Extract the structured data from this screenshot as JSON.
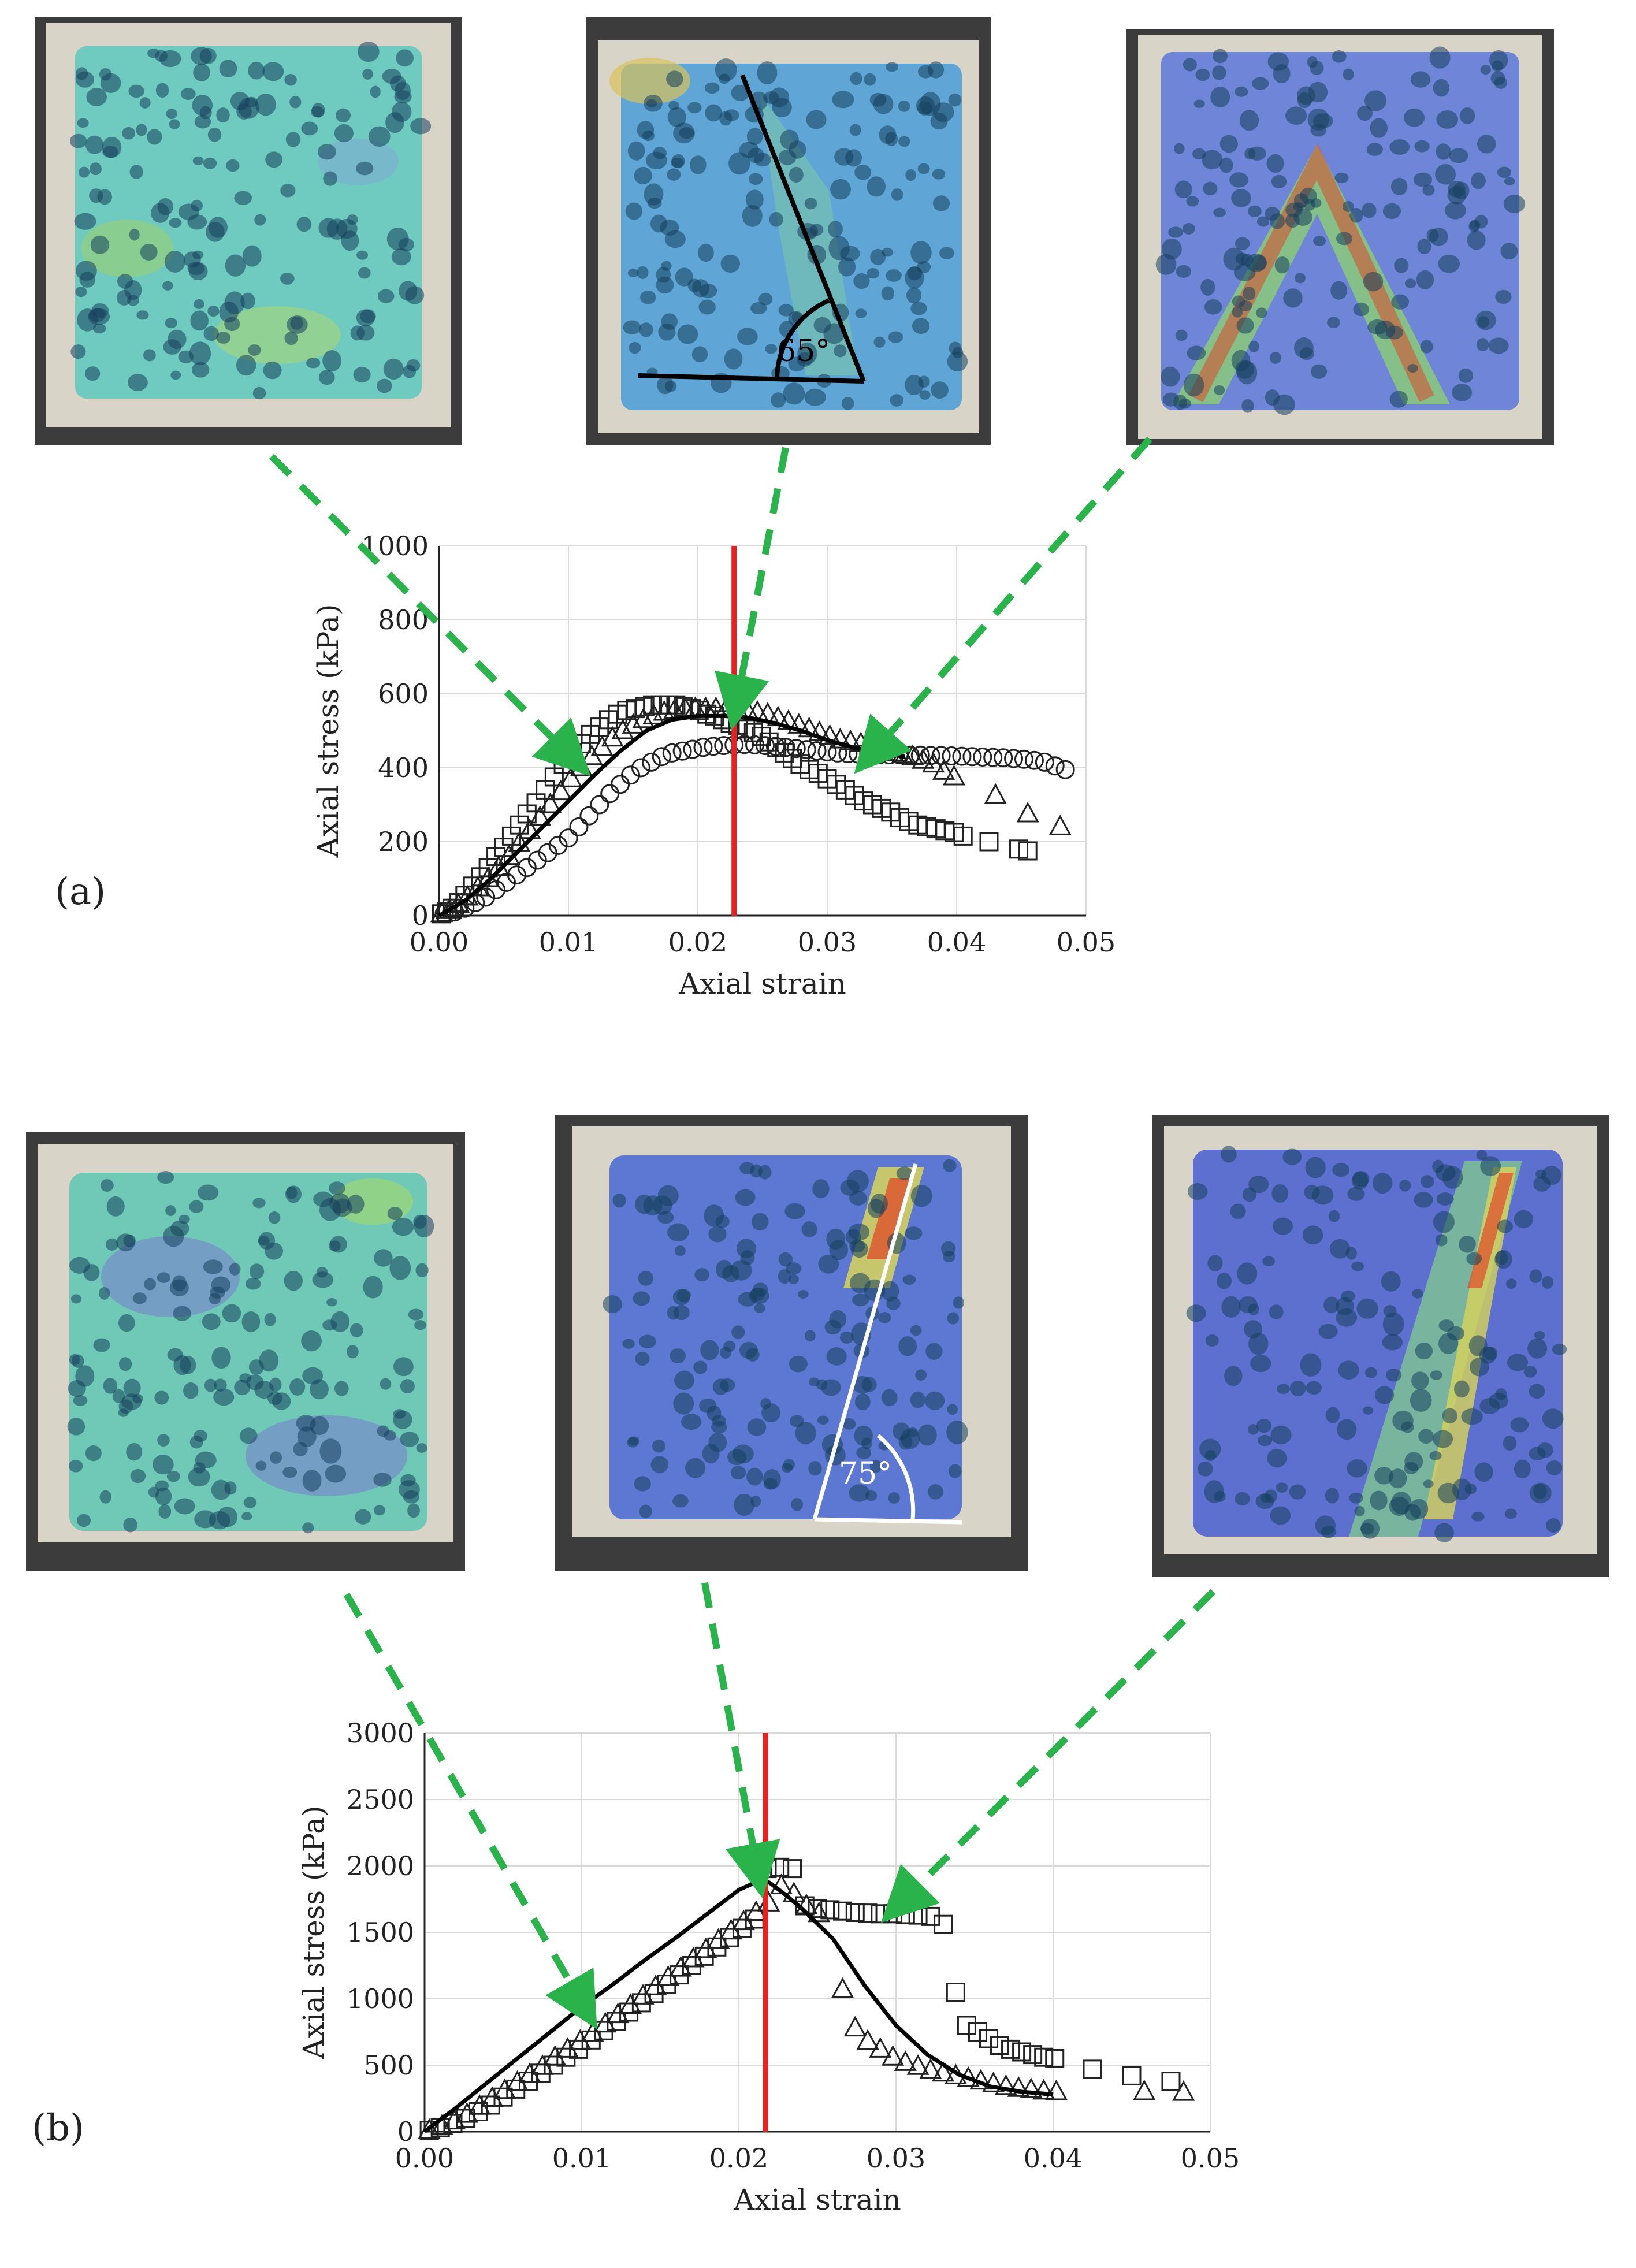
{
  "figure": {
    "panels": [
      {
        "label": "(a)",
        "angle_label": "65°",
        "angle_line_color": "#000000",
        "photo_colormap": "jet-overlay"
      },
      {
        "label": "(b)",
        "angle_label": "75°",
        "angle_line_color": "#ffffff",
        "photo_colormap": "jet-overlay"
      }
    ],
    "colors": {
      "arrow": "#2ab34a",
      "peak_line": "#e8201f",
      "markers": "#222222",
      "model_line": "#000000"
    }
  },
  "chart_data": [
    {
      "type": "scatter",
      "panel": "a",
      "xlabel": "Axial strain",
      "ylabel": "Axial stress (kPa)",
      "xlim": [
        0,
        0.05
      ],
      "ylim": [
        0,
        1000
      ],
      "xticks": [
        "0.00",
        "0.01",
        "0.02",
        "0.03",
        "0.04",
        "0.05"
      ],
      "yticks": [
        "0",
        "200",
        "400",
        "600",
        "800",
        "1000"
      ],
      "grid": true,
      "peak_strain_line": 0.0228,
      "arrow_targets": [
        [
          0.0102,
          430
        ],
        [
          0.023,
          575
        ],
        [
          0.0335,
          440
        ]
      ],
      "series": [
        {
          "marker": "square",
          "x": [
            0.0002,
            0.0006,
            0.001,
            0.0015,
            0.002,
            0.0026,
            0.0032,
            0.0038,
            0.0044,
            0.005,
            0.0056,
            0.0062,
            0.0068,
            0.0075,
            0.0082,
            0.0089,
            0.0096,
            0.0103,
            0.011,
            0.0117,
            0.0124,
            0.0131,
            0.0138,
            0.0145,
            0.0152,
            0.0159,
            0.0165,
            0.0171,
            0.0177,
            0.0183,
            0.0189,
            0.0195,
            0.0201,
            0.0207,
            0.0213,
            0.0219,
            0.0225,
            0.0231,
            0.0237,
            0.0243,
            0.0249,
            0.0255,
            0.0261,
            0.0267,
            0.0273,
            0.0279,
            0.0286,
            0.0293,
            0.03,
            0.0307,
            0.0314,
            0.0321,
            0.0328,
            0.0335,
            0.0342,
            0.0349,
            0.0356,
            0.0363,
            0.037,
            0.0377,
            0.0384,
            0.0391,
            0.0398,
            0.0405,
            0.0425,
            0.0448,
            0.0455
          ],
          "y": [
            5,
            10,
            20,
            35,
            55,
            80,
            105,
            130,
            160,
            185,
            215,
            245,
            275,
            305,
            340,
            375,
            410,
            440,
            465,
            490,
            510,
            530,
            545,
            555,
            560,
            565,
            570,
            570,
            570,
            570,
            565,
            560,
            555,
            545,
            540,
            530,
            520,
            515,
            505,
            495,
            485,
            470,
            455,
            440,
            425,
            410,
            395,
            385,
            370,
            355,
            340,
            325,
            310,
            300,
            290,
            280,
            265,
            255,
            245,
            240,
            235,
            230,
            225,
            215,
            200,
            180,
            175
          ]
        },
        {
          "marker": "triangle",
          "x": [
            0.0002,
            0.0008,
            0.0015,
            0.0022,
            0.003,
            0.0038,
            0.0046,
            0.0054,
            0.0062,
            0.007,
            0.0078,
            0.0086,
            0.0094,
            0.0102,
            0.011,
            0.0118,
            0.0126,
            0.0134,
            0.0142,
            0.015,
            0.0158,
            0.0166,
            0.0174,
            0.0182,
            0.019,
            0.0198,
            0.0206,
            0.0214,
            0.0222,
            0.023,
            0.0238,
            0.0246,
            0.0254,
            0.0262,
            0.027,
            0.0278,
            0.0286,
            0.0294,
            0.0302,
            0.031,
            0.0318,
            0.0326,
            0.0334,
            0.0342,
            0.035,
            0.0358,
            0.0366,
            0.0374,
            0.0382,
            0.039,
            0.0398,
            0.043,
            0.0455,
            0.048
          ],
          "y": [
            5,
            15,
            30,
            50,
            75,
            100,
            130,
            160,
            195,
            230,
            265,
            300,
            335,
            370,
            400,
            430,
            455,
            480,
            500,
            515,
            530,
            540,
            550,
            555,
            560,
            560,
            560,
            560,
            560,
            560,
            555,
            550,
            545,
            535,
            525,
            515,
            505,
            495,
            485,
            475,
            470,
            465,
            455,
            445,
            440,
            435,
            430,
            420,
            410,
            390,
            375,
            325,
            275,
            240
          ]
        },
        {
          "marker": "circle",
          "x": [
            0.0004,
            0.0012,
            0.002,
            0.0028,
            0.0036,
            0.0044,
            0.0052,
            0.006,
            0.0068,
            0.0076,
            0.0084,
            0.0092,
            0.01,
            0.0108,
            0.0116,
            0.0124,
            0.0132,
            0.014,
            0.0148,
            0.0156,
            0.0164,
            0.0172,
            0.018,
            0.0188,
            0.0196,
            0.0204,
            0.0212,
            0.022,
            0.0228,
            0.0236,
            0.0244,
            0.0252,
            0.026,
            0.0268,
            0.0276,
            0.0284,
            0.0292,
            0.03,
            0.0308,
            0.0316,
            0.0324,
            0.0332,
            0.034,
            0.0348,
            0.0356,
            0.0364,
            0.0372,
            0.038,
            0.0388,
            0.0396,
            0.0404,
            0.0412,
            0.042,
            0.0428,
            0.0436,
            0.0444,
            0.0452,
            0.046,
            0.0468,
            0.0476,
            0.0484
          ],
          "y": [
            5,
            10,
            20,
            35,
            50,
            70,
            90,
            110,
            130,
            150,
            170,
            190,
            210,
            240,
            270,
            300,
            330,
            355,
            380,
            400,
            415,
            430,
            440,
            445,
            450,
            455,
            458,
            460,
            462,
            463,
            462,
            460,
            458,
            455,
            452,
            449,
            446,
            443,
            440,
            438,
            437,
            436,
            435,
            435,
            435,
            434,
            434,
            433,
            433,
            432,
            431,
            430,
            429,
            428,
            427,
            425,
            423,
            420,
            415,
            405,
            395
          ]
        },
        {
          "marker": "line",
          "x": [
            0,
            0.002,
            0.004,
            0.006,
            0.008,
            0.01,
            0.012,
            0.014,
            0.016,
            0.018,
            0.02,
            0.022,
            0.024,
            0.026,
            0.028,
            0.03,
            0.032,
            0.034,
            0.036
          ],
          "y": [
            0,
            40,
            100,
            170,
            240,
            310,
            380,
            445,
            500,
            530,
            540,
            540,
            535,
            520,
            500,
            475,
            455,
            440,
            430
          ]
        }
      ]
    },
    {
      "type": "scatter",
      "panel": "b",
      "xlabel": "Axial strain",
      "ylabel": "Axial stress (kPa)",
      "xlim": [
        0,
        0.05
      ],
      "ylim": [
        0,
        3000
      ],
      "xticks": [
        "0.00",
        "0.01",
        "0.02",
        "0.03",
        "0.04",
        "0.05"
      ],
      "yticks": [
        "0",
        "500",
        "1000",
        "1500",
        "2000",
        "2500",
        "3000"
      ],
      "grid": true,
      "peak_strain_line": 0.0217,
      "arrow_targets": [
        [
          0.0101,
          950
        ],
        [
          0.0212,
          1960
        ],
        [
          0.0303,
          1720
        ]
      ],
      "series": [
        {
          "marker": "square",
          "x": [
            0.0003,
            0.001,
            0.0018,
            0.0026,
            0.0034,
            0.0042,
            0.005,
            0.0058,
            0.0066,
            0.0074,
            0.0082,
            0.009,
            0.0098,
            0.0106,
            0.0114,
            0.0122,
            0.013,
            0.0138,
            0.0146,
            0.0154,
            0.0162,
            0.017,
            0.0178,
            0.0186,
            0.0194,
            0.0202,
            0.021,
            0.0218,
            0.0226,
            0.0234,
            0.0242,
            0.025,
            0.0258,
            0.0266,
            0.0274,
            0.0282,
            0.029,
            0.0298,
            0.0306,
            0.0314,
            0.0322,
            0.033,
            0.0338,
            0.0345,
            0.0352,
            0.0359,
            0.0366,
            0.0373,
            0.038,
            0.0387,
            0.0394,
            0.0401,
            0.0425,
            0.045,
            0.0475
          ],
          "y": [
            10,
            30,
            60,
            100,
            150,
            200,
            260,
            320,
            380,
            440,
            500,
            560,
            620,
            690,
            760,
            830,
            900,
            970,
            1040,
            1110,
            1180,
            1250,
            1320,
            1390,
            1460,
            1530,
            1600,
            1980,
            1990,
            1980,
            1700,
            1680,
            1670,
            1660,
            1650,
            1645,
            1640,
            1640,
            1635,
            1630,
            1620,
            1560,
            1050,
            800,
            750,
            700,
            650,
            620,
            600,
            580,
            560,
            550,
            470,
            420,
            380
          ]
        },
        {
          "marker": "triangle",
          "x": [
            0.0003,
            0.0011,
            0.0019,
            0.0027,
            0.0035,
            0.0043,
            0.0051,
            0.0059,
            0.0067,
            0.0075,
            0.0083,
            0.0091,
            0.0099,
            0.0107,
            0.0115,
            0.0123,
            0.0131,
            0.0139,
            0.0147,
            0.0155,
            0.0163,
            0.0171,
            0.0179,
            0.0187,
            0.0195,
            0.0203,
            0.0211,
            0.0219,
            0.0227,
            0.0235,
            0.0243,
            0.0251,
            0.0266,
            0.0274,
            0.0282,
            0.029,
            0.0298,
            0.0306,
            0.0314,
            0.0322,
            0.033,
            0.0338,
            0.0346,
            0.0354,
            0.0362,
            0.037,
            0.0378,
            0.0386,
            0.0394,
            0.0402,
            0.0458,
            0.0483
          ],
          "y": [
            10,
            40,
            80,
            130,
            190,
            250,
            310,
            370,
            430,
            490,
            560,
            620,
            680,
            740,
            810,
            880,
            950,
            1020,
            1090,
            1160,
            1230,
            1300,
            1370,
            1440,
            1510,
            1580,
            1650,
            1720,
            1850,
            1790,
            1700,
            1640,
            1070,
            780,
            680,
            620,
            560,
            520,
            490,
            460,
            440,
            420,
            400,
            380,
            360,
            340,
            325,
            315,
            305,
            300,
            300,
            295
          ]
        },
        {
          "marker": "line",
          "x": [
            0,
            0.002,
            0.004,
            0.006,
            0.008,
            0.01,
            0.012,
            0.014,
            0.016,
            0.018,
            0.02,
            0.0215,
            0.022,
            0.023,
            0.024,
            0.026,
            0.028,
            0.03,
            0.032,
            0.034,
            0.036,
            0.038,
            0.04
          ],
          "y": [
            0,
            180,
            370,
            560,
            750,
            940,
            1110,
            1290,
            1460,
            1640,
            1820,
            1900,
            1870,
            1780,
            1680,
            1450,
            1100,
            800,
            580,
            430,
            340,
            300,
            280
          ]
        }
      ]
    }
  ]
}
